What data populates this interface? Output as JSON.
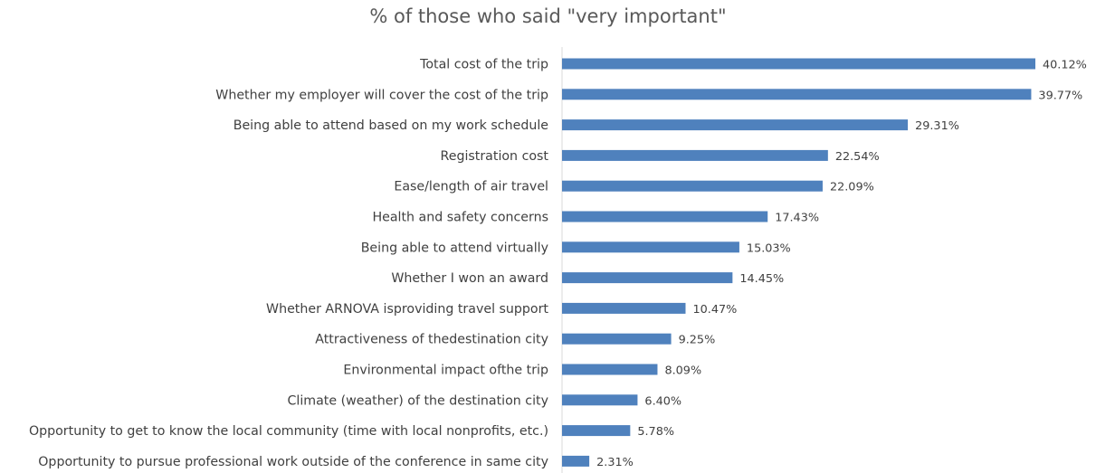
{
  "chart_data": {
    "type": "bar",
    "orientation": "horizontal",
    "title": "% of those who said \"very important\"",
    "xlabel": "",
    "ylabel": "",
    "grid": false,
    "legend": "none",
    "xlim": [
      0,
      40.12
    ],
    "bar_color": "#4F81BD",
    "value_suffix": "%",
    "categories": [
      "Total cost of the trip",
      "Whether my employer will cover the cost of the trip",
      "Being able to attend based on my work schedule",
      "Registration cost",
      "Ease/length of air travel",
      "Health and safety concerns",
      "Being able to attend virtually",
      "Whether I won an award",
      "Whether ARNOVA isproviding travel support",
      "Attractiveness of thedestination city",
      "Environmental impact ofthe trip",
      "Climate (weather) of the destination city",
      "Opportunity to get to know the local community (time with local nonprofits, etc.)",
      "Opportunity to pursue professional work outside of the conference in same city"
    ],
    "values": [
      40.12,
      39.77,
      29.31,
      22.54,
      22.09,
      17.43,
      15.03,
      14.45,
      10.47,
      9.25,
      8.09,
      6.4,
      5.78,
      2.31
    ],
    "value_labels": [
      "40.12%",
      "39.77%",
      "29.31%",
      "22.54%",
      "22.09%",
      "17.43%",
      "15.03%",
      "14.45%",
      "10.47%",
      "9.25%",
      "8.09%",
      "6.40%",
      "5.78%",
      "2.31%"
    ]
  }
}
